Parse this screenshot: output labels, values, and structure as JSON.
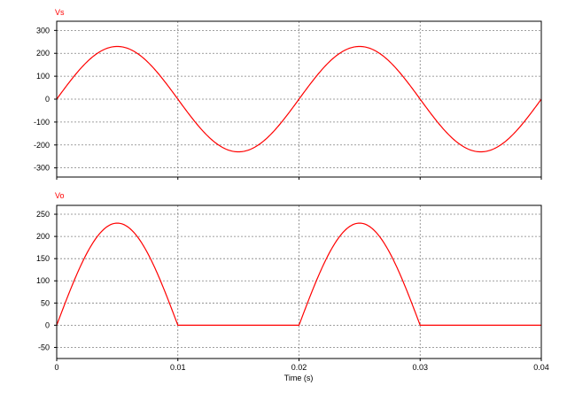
{
  "colors": {
    "trace": "#ff0000",
    "grid": "#808080",
    "frame": "#000000",
    "background": "#ffffff"
  },
  "x_axis": {
    "label": "Time (s)",
    "ticks": [
      0,
      0.01,
      0.02,
      0.03,
      0.04
    ],
    "tick_labels": [
      "0",
      "0.01",
      "0.02",
      "0.03",
      "0.04"
    ]
  },
  "chart_data": [
    {
      "type": "line",
      "title": "Vs",
      "xlabel": "",
      "ylabel": "",
      "grid": true,
      "xlim": [
        0,
        0.04
      ],
      "ylim": [
        -340,
        340
      ],
      "yticks": [
        300,
        200,
        100,
        0,
        -100,
        -200,
        -300
      ],
      "ytick_labels": [
        "300",
        "200",
        "100",
        "0",
        "-100",
        "-200",
        "-300"
      ],
      "series": [
        {
          "waveform": "sine",
          "amplitude": 230,
          "frequency_hz": 50,
          "x": [
            0,
            0.0025,
            0.005,
            0.0075,
            0.01,
            0.0125,
            0.015,
            0.0175,
            0.02,
            0.0225,
            0.025,
            0.0275,
            0.03,
            0.0325,
            0.035,
            0.0375,
            0.04
          ],
          "values": [
            0,
            163,
            230,
            163,
            0,
            -163,
            -230,
            -163,
            0,
            163,
            230,
            163,
            0,
            -163,
            -230,
            -163,
            0
          ]
        }
      ]
    },
    {
      "type": "line",
      "title": "Vo",
      "xlabel": "Time (s)",
      "ylabel": "",
      "grid": true,
      "xlim": [
        0,
        0.04
      ],
      "ylim": [
        -75,
        270
      ],
      "yticks": [
        250,
        200,
        150,
        100,
        50,
        0,
        -50
      ],
      "ytick_labels": [
        "250",
        "200",
        "150",
        "100",
        "50",
        "0",
        "-50"
      ],
      "series": [
        {
          "waveform": "half-wave-rectified-sine",
          "amplitude": 230,
          "frequency_hz": 50,
          "x": [
            0,
            0.0025,
            0.005,
            0.0075,
            0.01,
            0.0125,
            0.015,
            0.0175,
            0.02,
            0.0225,
            0.025,
            0.0275,
            0.03,
            0.0325,
            0.035,
            0.0375,
            0.04
          ],
          "values": [
            0,
            163,
            230,
            163,
            0,
            0,
            0,
            0,
            0,
            163,
            230,
            163,
            0,
            0,
            0,
            0,
            0
          ]
        }
      ]
    }
  ]
}
